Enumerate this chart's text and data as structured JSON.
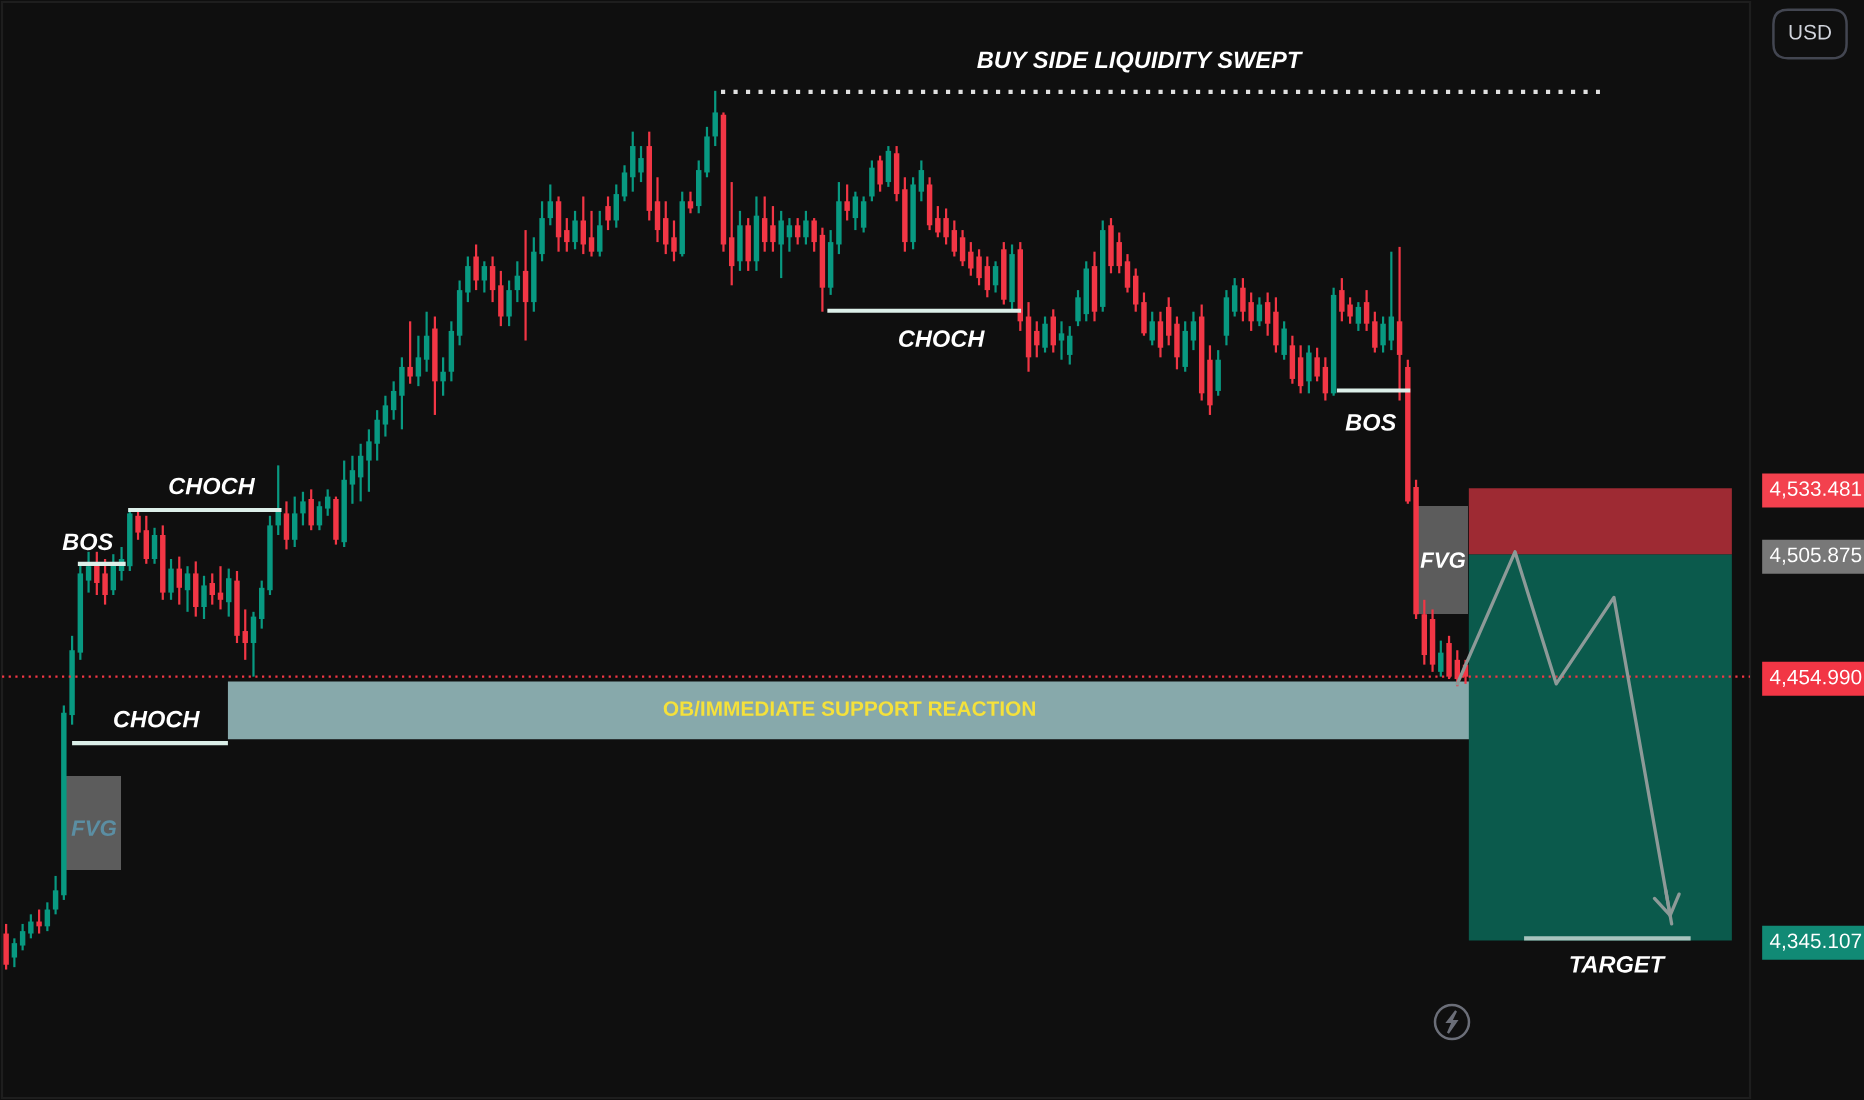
{
  "chart_data": {
    "type": "candlestick",
    "categories": [
      null,
      null,
      null,
      null,
      null,
      null,
      null,
      null,
      null,
      null,
      null,
      null,
      null,
      null,
      null,
      null,
      null,
      null,
      null,
      null,
      null,
      null,
      null,
      null,
      null,
      null,
      null,
      null,
      null,
      null,
      null,
      null,
      null,
      null,
      null,
      null,
      null,
      null,
      null,
      null,
      null,
      null,
      null,
      null,
      null,
      null,
      null,
      null,
      null,
      null,
      null,
      null,
      null,
      null,
      null,
      null,
      null,
      null,
      null,
      null,
      null,
      null,
      null,
      null,
      null,
      null,
      null,
      null,
      null,
      null,
      null,
      null,
      null,
      null,
      null,
      null,
      null,
      null,
      null,
      null,
      null,
      null,
      null,
      null,
      null,
      null,
      null,
      null,
      null,
      null,
      null,
      null,
      null,
      null,
      null,
      null,
      null,
      null,
      null,
      null,
      null,
      null,
      null,
      null,
      null,
      null,
      null,
      null,
      null,
      null,
      null,
      null,
      null,
      null,
      null,
      null,
      null,
      null,
      null,
      null,
      null,
      null,
      null,
      null,
      null,
      null,
      null,
      null,
      null,
      null,
      null,
      null,
      null,
      null,
      null,
      null,
      null,
      null,
      null,
      null,
      null,
      null,
      null,
      null,
      null,
      null,
      null,
      null,
      null,
      null,
      null,
      null,
      null,
      null,
      null,
      null,
      null,
      null,
      null,
      null,
      null,
      null,
      null,
      null,
      null,
      null,
      null,
      null,
      null,
      null,
      null,
      null,
      null,
      null,
      null,
      null,
      null,
      null,
      null,
      null,
      null,
      null,
      null,
      null,
      null,
      null,
      null,
      null,
      null,
      null,
      null,
      null,
      null,
      null,
      null,
      null,
      null,
      null,
      null,
      null,
      null,
      null,
      null,
      null,
      null,
      null,
      null,
      null,
      null,
      null,
      null,
      null
    ],
    "ohlc": [
      [
        4348,
        4352,
        4333,
        4335
      ],
      [
        4338,
        4346,
        4334,
        4344
      ],
      [
        4343,
        4352,
        4341,
        4349
      ],
      [
        4348,
        4356,
        4346,
        4353
      ],
      [
        4353,
        4358,
        4348,
        4351
      ],
      [
        4351,
        4361,
        4349,
        4358
      ],
      [
        4358,
        4372,
        4356,
        4366
      ],
      [
        4364,
        4443,
        4362,
        4440
      ],
      [
        4439,
        4472,
        4435,
        4466
      ],
      [
        4465,
        4502,
        4462,
        4498
      ],
      [
        4495,
        4507,
        4490,
        4501
      ],
      [
        4502,
        4507,
        4489,
        4494
      ],
      [
        4498,
        4504,
        4485,
        4489
      ],
      [
        4491,
        4506,
        4489,
        4502
      ],
      [
        4499,
        4509,
        4495,
        4504
      ],
      [
        4501,
        4525,
        4499,
        4523
      ],
      [
        4522,
        4524,
        4512,
        4515
      ],
      [
        4516,
        4522,
        4502,
        4504
      ],
      [
        4504,
        4517,
        4502,
        4514
      ],
      [
        4514,
        4518,
        4487,
        4490
      ],
      [
        4490,
        4504,
        4487,
        4500
      ],
      [
        4500,
        4505,
        4485,
        4492
      ],
      [
        4491,
        4501,
        4482,
        4498
      ],
      [
        4498,
        4503,
        4480,
        4484
      ],
      [
        4484,
        4497,
        4479,
        4493
      ],
      [
        4494,
        4498,
        4485,
        4489
      ],
      [
        4490,
        4501,
        4483,
        4487
      ],
      [
        4486,
        4500,
        4480,
        4496
      ],
      [
        4495,
        4499,
        4469,
        4472
      ],
      [
        4474,
        4483,
        4462,
        4469
      ],
      [
        4469,
        4482,
        4455,
        4480
      ],
      [
        4479,
        4495,
        4475,
        4492
      ],
      [
        4491,
        4522,
        4489,
        4518
      ],
      [
        4518,
        4543,
        4514,
        4524
      ],
      [
        4523,
        4528,
        4508,
        4512
      ],
      [
        4512,
        4530,
        4509,
        4523
      ],
      [
        4523,
        4532,
        4518,
        4528
      ],
      [
        4529,
        4533,
        4516,
        4518
      ],
      [
        4518,
        4528,
        4516,
        4526
      ],
      [
        4525,
        4533,
        4522,
        4530
      ],
      [
        4529,
        4530,
        4510,
        4512
      ],
      [
        4511,
        4545,
        4509,
        4537
      ],
      [
        4535,
        4547,
        4527,
        4541
      ],
      [
        4538,
        4552,
        4528,
        4547
      ],
      [
        4545,
        4558,
        4532,
        4553
      ],
      [
        4552,
        4566,
        4545,
        4562
      ],
      [
        4560,
        4572,
        4555,
        4568
      ],
      [
        4566,
        4578,
        4562,
        4574
      ],
      [
        4572,
        4588,
        4558,
        4584
      ],
      [
        4584,
        4603,
        4577,
        4580
      ],
      [
        4580,
        4597,
        4576,
        4588
      ],
      [
        4587,
        4607,
        4582,
        4597
      ],
      [
        4600,
        4605,
        4564,
        4578
      ],
      [
        4578,
        4588,
        4572,
        4582
      ],
      [
        4582,
        4603,
        4578,
        4599
      ],
      [
        4597,
        4620,
        4593,
        4616
      ],
      [
        4615,
        4630,
        4611,
        4626
      ],
      [
        4630,
        4635,
        4616,
        4620
      ],
      [
        4620,
        4628,
        4615,
        4626
      ],
      [
        4626,
        4630,
        4611,
        4616
      ],
      [
        4618,
        4624,
        4601,
        4605
      ],
      [
        4605,
        4620,
        4601,
        4616
      ],
      [
        4616,
        4628,
        4611,
        4622
      ],
      [
        4624,
        4641,
        4595,
        4611
      ],
      [
        4611,
        4638,
        4607,
        4632
      ],
      [
        4631,
        4653,
        4628,
        4646
      ],
      [
        4646,
        4660,
        4643,
        4653
      ],
      [
        4653,
        4655,
        4632,
        4638
      ],
      [
        4641,
        4646,
        4632,
        4636
      ],
      [
        4636,
        4649,
        4633,
        4645
      ],
      [
        4645,
        4655,
        4631,
        4635
      ],
      [
        4638,
        4649,
        4630,
        4632
      ],
      [
        4632,
        4649,
        4630,
        4643
      ],
      [
        4651,
        4655,
        4641,
        4645
      ],
      [
        4645,
        4660,
        4642,
        4656
      ],
      [
        4655,
        4668,
        4653,
        4665
      ],
      [
        4663,
        4682,
        4657,
        4676
      ],
      [
        4665,
        4676,
        4661,
        4671
      ],
      [
        4676,
        4682,
        4645,
        4649
      ],
      [
        4653,
        4663,
        4636,
        4641
      ],
      [
        4646,
        4653,
        4631,
        4635
      ],
      [
        4638,
        4645,
        4628,
        4632
      ],
      [
        4631,
        4657,
        4630,
        4653
      ],
      [
        4653,
        4657,
        4648,
        4650
      ],
      [
        4651,
        4670,
        4648,
        4666
      ],
      [
        4665,
        4684,
        4663,
        4680
      ],
      [
        4680,
        4699,
        4676,
        4690
      ],
      [
        4689,
        4690,
        4632,
        4635
      ],
      [
        4638,
        4661,
        4618,
        4626
      ],
      [
        4628,
        4649,
        4624,
        4643
      ],
      [
        4643,
        4646,
        4624,
        4628
      ],
      [
        4628,
        4655,
        4624,
        4647
      ],
      [
        4646,
        4655,
        4632,
        4636
      ],
      [
        4643,
        4651,
        4632,
        4636
      ],
      [
        4635,
        4649,
        4621,
        4645
      ],
      [
        4638,
        4646,
        4632,
        4643
      ],
      [
        4643,
        4646,
        4635,
        4638
      ],
      [
        4638,
        4649,
        4635,
        4645
      ],
      [
        4645,
        4646,
        4632,
        4636
      ],
      [
        4639,
        4642,
        4607,
        4617
      ],
      [
        4617,
        4641,
        4614,
        4636
      ],
      [
        4635,
        4661,
        4631,
        4653
      ],
      [
        4653,
        4660,
        4645,
        4649
      ],
      [
        4646,
        4657,
        4641,
        4655
      ],
      [
        4642,
        4655,
        4640,
        4653
      ],
      [
        4655,
        4670,
        4653,
        4667
      ],
      [
        4670,
        4672,
        4657,
        4660
      ],
      [
        4661,
        4676,
        4659,
        4674
      ],
      [
        4673,
        4676,
        4653,
        4656
      ],
      [
        4658,
        4663,
        4632,
        4636
      ],
      [
        4636,
        4663,
        4633,
        4660
      ],
      [
        4657,
        4670,
        4653,
        4666
      ],
      [
        4660,
        4663,
        4641,
        4643
      ],
      [
        4646,
        4651,
        4638,
        4640
      ],
      [
        4646,
        4650,
        4635,
        4638
      ],
      [
        4641,
        4645,
        4630,
        4632
      ],
      [
        4638,
        4641,
        4626,
        4628
      ],
      [
        4632,
        4636,
        4622,
        4625
      ],
      [
        4630,
        4633,
        4618,
        4621
      ],
      [
        4626,
        4630,
        4613,
        4616
      ],
      [
        4618,
        4628,
        4615,
        4626
      ],
      [
        4633,
        4636,
        4610,
        4612
      ],
      [
        4611,
        4635,
        4608,
        4631
      ],
      [
        4633,
        4636,
        4599,
        4603
      ],
      [
        4605,
        4611,
        4582,
        4588
      ],
      [
        4599,
        4603,
        4588,
        4593
      ],
      [
        4592,
        4605,
        4590,
        4602
      ],
      [
        4605,
        4608,
        4590,
        4593
      ],
      [
        4595,
        4603,
        4587,
        4598
      ],
      [
        4589,
        4601,
        4585,
        4597
      ],
      [
        4603,
        4616,
        4601,
        4613
      ],
      [
        4606,
        4628,
        4603,
        4625
      ],
      [
        4626,
        4632,
        4603,
        4607
      ],
      [
        4609,
        4645,
        4607,
        4641
      ],
      [
        4643,
        4646,
        4623,
        4626
      ],
      [
        4636,
        4640,
        4623,
        4626
      ],
      [
        4628,
        4631,
        4615,
        4617
      ],
      [
        4622,
        4625,
        4607,
        4610
      ],
      [
        4611,
        4615,
        4597,
        4598
      ],
      [
        4595,
        4607,
        4593,
        4603
      ],
      [
        4603,
        4607,
        4588,
        4592
      ],
      [
        4609,
        4613,
        4593,
        4597
      ],
      [
        4602,
        4605,
        4583,
        4588
      ],
      [
        4584,
        4603,
        4582,
        4599
      ],
      [
        4595,
        4607,
        4591,
        4603
      ],
      [
        4605,
        4610,
        4570,
        4573
      ],
      [
        4587,
        4593,
        4564,
        4568
      ],
      [
        4574,
        4591,
        4572,
        4587
      ],
      [
        4597,
        4616,
        4593,
        4613
      ],
      [
        4607,
        4621,
        4605,
        4618
      ],
      [
        4617,
        4621,
        4603,
        4607
      ],
      [
        4611,
        4615,
        4599,
        4603
      ],
      [
        4603,
        4613,
        4601,
        4610
      ],
      [
        4611,
        4615,
        4597,
        4602
      ],
      [
        4607,
        4613,
        4590,
        4593
      ],
      [
        4589,
        4603,
        4587,
        4600
      ],
      [
        4593,
        4597,
        4577,
        4579
      ],
      [
        4588,
        4593,
        4573,
        4576
      ],
      [
        4578,
        4593,
        4573,
        4590
      ],
      [
        4588,
        4592,
        4578,
        4580
      ],
      [
        4584,
        4588,
        4570,
        4573
      ],
      [
        4573,
        4617,
        4572,
        4614
      ],
      [
        4616,
        4621,
        4603,
        4607
      ],
      [
        4610,
        4613,
        4602,
        4605
      ],
      [
        4602,
        4611,
        4599,
        4609
      ],
      [
        4611,
        4616,
        4599,
        4602
      ],
      [
        4603,
        4607,
        4590,
        4592
      ],
      [
        4593,
        4605,
        4590,
        4602
      ],
      [
        4595,
        4632,
        4591,
        4605
      ],
      [
        4603,
        4634,
        4570,
        4589
      ],
      [
        4584,
        4587,
        4527,
        4528
      ],
      [
        4534,
        4537,
        4479,
        4481
      ],
      [
        4481,
        4487,
        4460,
        4464
      ],
      [
        4479,
        4483,
        4457,
        4460
      ],
      [
        4457,
        4470,
        4455,
        4465
      ],
      [
        4469,
        4472,
        4454,
        4455
      ],
      [
        4462,
        4466,
        4451,
        4454
      ],
      [
        4460,
        4462,
        4452,
        4454.99
      ],
      null,
      null,
      null,
      null,
      null,
      null,
      null,
      null,
      null,
      null,
      null,
      null,
      null,
      null,
      null,
      null,
      null,
      null,
      null,
      null,
      null,
      null,
      null,
      null,
      null,
      null,
      null,
      null,
      null,
      null,
      null,
      null,
      null,
      null
    ],
    "colors": [
      "#f23645",
      "#089981",
      "#089981",
      "#089981",
      "#f23645",
      "#089981",
      "#089981",
      "#089981",
      "#089981",
      "#089981",
      "#089981",
      "#f23645",
      "#f23645",
      "#089981",
      "#089981",
      "#089981",
      "#f23645",
      "#f23645",
      "#089981",
      "#f23645",
      "#089981",
      "#f23645",
      "#089981",
      "#f23645",
      "#089981",
      "#f23645",
      "#f23645",
      "#089981",
      "#f23645",
      "#f23645",
      "#089981",
      "#089981",
      "#089981",
      "#089981",
      "#f23645",
      "#089981",
      "#089981",
      "#f23645",
      "#089981",
      "#089981",
      "#f23645",
      "#089981",
      "#089981",
      "#089981",
      "#089981",
      "#089981",
      "#089981",
      "#089981",
      "#089981",
      "#f23645",
      "#089981",
      "#089981",
      "#f23645",
      "#089981",
      "#089981",
      "#089981",
      "#089981",
      "#f23645",
      "#089981",
      "#f23645",
      "#f23645",
      "#089981",
      "#089981",
      "#f23645",
      "#089981",
      "#089981",
      "#089981",
      "#f23645",
      "#f23645",
      "#089981",
      "#f23645",
      "#f23645",
      "#089981",
      "#f23645",
      "#089981",
      "#089981",
      "#089981",
      "#089981",
      "#f23645",
      "#f23645",
      "#f23645",
      "#f23645",
      "#089981",
      "#f23645",
      "#089981",
      "#089981",
      "#089981",
      "#f23645",
      "#f23645",
      "#089981",
      "#f23645",
      "#089981",
      "#f23645",
      "#f23645",
      "#089981",
      "#089981",
      "#f23645",
      "#089981",
      "#f23645",
      "#f23645",
      "#089981",
      "#089981",
      "#f23645",
      "#089981",
      "#089981",
      "#089981",
      "#f23645",
      "#089981",
      "#f23645",
      "#f23645",
      "#089981",
      "#089981",
      "#f23645",
      "#f23645",
      "#f23645",
      "#f23645",
      "#f23645",
      "#f23645",
      "#f23645",
      "#f23645",
      "#089981",
      "#f23645",
      "#089981",
      "#f23645",
      "#f23645",
      "#f23645",
      "#089981",
      "#f23645",
      "#089981",
      "#089981",
      "#089981",
      "#089981",
      "#f23645",
      "#089981",
      "#f23645",
      "#f23645",
      "#f23645",
      "#f23645",
      "#f23645",
      "#089981",
      "#f23645",
      "#f23645",
      "#f23645",
      "#089981",
      "#089981",
      "#f23645",
      "#f23645",
      "#089981",
      "#089981",
      "#089981",
      "#f23645",
      "#f23645",
      "#089981",
      "#f23645",
      "#f23645",
      "#089981",
      "#f23645",
      "#f23645",
      "#089981",
      "#f23645",
      "#f23645",
      "#089981",
      "#f23645",
      "#f23645",
      "#089981",
      "#f23645",
      "#f23645",
      "#089981",
      "#089981",
      "#f23645",
      "#f23645",
      "#f23645",
      "#f23645",
      "#f23645",
      "#089981",
      "#f23645",
      "#f23645",
      "#f23645",
      null,
      null,
      null,
      null,
      null,
      null,
      null,
      null,
      null,
      null,
      null,
      null,
      null,
      null,
      null,
      null,
      null,
      null,
      null,
      null,
      null,
      null,
      null,
      null,
      null,
      null,
      null,
      null,
      null,
      null,
      null,
      null,
      null,
      null
    ],
    "series": [
      {
        "type": "line",
        "color": "#8d9a98",
        "values": [
          null,
          null,
          null,
          null,
          null,
          null,
          null,
          null,
          null,
          null,
          null,
          null,
          null,
          null,
          null,
          null,
          null,
          null,
          null,
          null,
          null,
          null,
          null,
          null,
          null,
          null,
          null,
          null,
          null,
          null,
          null,
          null,
          null,
          null,
          null,
          null,
          null,
          null,
          null,
          null,
          null,
          null,
          null,
          null,
          null,
          null,
          null,
          null,
          null,
          null,
          null,
          null,
          null,
          null,
          null,
          null,
          null,
          null,
          null,
          null,
          null,
          null,
          null,
          null,
          null,
          null,
          null,
          null,
          null,
          null,
          null,
          null,
          null,
          null,
          null,
          null,
          null,
          null,
          null,
          null,
          null,
          null,
          null,
          null,
          null,
          null,
          null,
          null,
          null,
          null,
          null,
          null,
          null,
          null,
          null,
          null,
          null,
          null,
          null,
          null,
          null,
          null,
          null,
          null,
          null,
          null,
          null,
          null,
          null,
          null,
          null,
          null,
          null,
          null,
          null,
          null,
          null,
          null,
          null,
          null,
          null,
          null,
          null,
          null,
          null,
          null,
          null,
          null,
          null,
          null,
          null,
          null,
          null,
          null,
          null,
          null,
          null,
          null,
          null,
          null,
          null,
          null,
          null,
          null,
          null,
          null,
          null,
          null,
          null,
          null,
          null,
          null,
          null,
          null,
          null,
          null,
          null,
          null,
          null,
          null,
          null,
          null,
          null,
          null,
          null,
          null,
          null,
          null,
          null,
          null,
          null,
          null,
          null,
          null,
          null,
          null,
          4452,
          null,
          null,
          null,
          null,
          null,
          null,
          4507,
          null,
          null,
          null,
          null,
          4452,
          null,
          null,
          null,
          null,
          null,
          null,
          4488,
          null,
          null,
          null,
          null,
          null,
          null,
          4352,
          null,
          null,
          null,
          null,
          null,
          null,
          null,
          null,
          null
        ]
      }
    ],
    "ylim": [
      4279.5,
      4736.0
    ],
    "yticks": [
      {
        "value": 4533.481,
        "label": "4,533.481"
      },
      {
        "value": 4505.875,
        "label": "4,505.875"
      },
      {
        "value": 4454.99,
        "label": "4,454.990"
      },
      {
        "value": 4345.107,
        "label": "4,345.107"
      }
    ],
    "tick_labels": "y",
    "ref_lines": [
      {
        "axis": "y",
        "value": 4698.6,
        "label": "BUY SIDE LIQUIDITY SWEPT",
        "color": "#e0e0e0",
        "line_style": "dotted"
      },
      {
        "axis": "y",
        "value": 4524.4,
        "label": "CHOCH",
        "color": "#dcefe9"
      },
      {
        "axis": "y",
        "value": 4427.3,
        "label": "CHOCH",
        "color": "#dcefe9"
      },
      {
        "axis": "y",
        "value": 4607.4,
        "label": "CHOCH",
        "color": "#dcefe9"
      },
      {
        "axis": "y",
        "value": 4502.0,
        "label": "BOS",
        "color": "#dcefe9"
      },
      {
        "axis": "y",
        "value": 4574.2,
        "label": "BOS",
        "color": "#dcefe9"
      },
      {
        "axis": "y",
        "value": 4346.0,
        "label": "TARGET",
        "color": "#a8c4be"
      },
      {
        "axis": "y",
        "value": 4454.99,
        "color": "#f23645",
        "line_style": "dotted"
      }
    ],
    "bands": [
      {
        "axis": "y",
        "from": 4428.9,
        "to": 4453.0,
        "label": "OB/IMMEDIATE SUPPORT REACTION",
        "color": "#87a9ab"
      },
      {
        "axis": "y",
        "from": 4505.875,
        "to": 4533.481,
        "color": "#9e2a33"
      },
      {
        "axis": "y",
        "from": 4345.107,
        "to": 4505.875,
        "color": "#0b5a4c"
      }
    ],
    "annotations": [
      "USD",
      "FVG",
      "FVG"
    ]
  }
}
